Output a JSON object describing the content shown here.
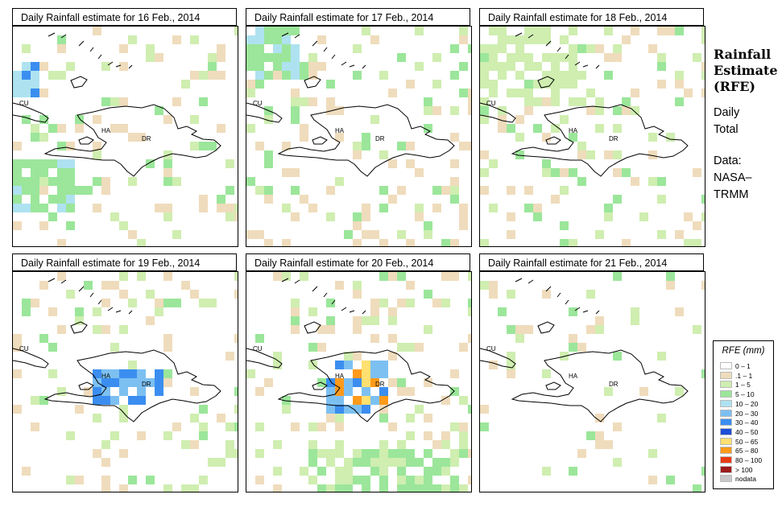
{
  "panels": [
    {
      "title": "Daily Rainfall estimate for  16 Feb., 2014"
    },
    {
      "title": "Daily Rainfall estimate for  17 Feb., 2014"
    },
    {
      "title": "Daily Rainfall estimate for  18 Feb., 2014"
    },
    {
      "title": "Daily Rainfall estimate for  19 Feb., 2014"
    },
    {
      "title": "Daily Rainfall estimate for  20 Feb., 2014"
    },
    {
      "title": "Daily Rainfall estimate for  21 Feb., 2014"
    }
  ],
  "map_labels": {
    "cuba": "CU",
    "haiti": "HA",
    "dr": "DR"
  },
  "side": {
    "title_lines": [
      "Rainfall",
      "Estimate",
      "(RFE)"
    ],
    "daily_lines": [
      "Daily",
      "Total"
    ],
    "data_lines": [
      "Data:",
      "NASA–",
      "TRMM"
    ]
  },
  "legend": {
    "title": "RFE (mm)",
    "items": [
      {
        "label": "0 – 1",
        "color": "#ffffff"
      },
      {
        "label": ".1 – 1",
        "color": "#efdcbc"
      },
      {
        "label": "1 – 5",
        "color": "#cfeeb0"
      },
      {
        "label": "5 – 10",
        "color": "#9be69a"
      },
      {
        "label": "10 – 20",
        "color": "#aee2f0"
      },
      {
        "label": "20 – 30",
        "color": "#7cc0f2"
      },
      {
        "label": "30 – 40",
        "color": "#3b8ef0"
      },
      {
        "label": "40 – 50",
        "color": "#1b4fd6"
      },
      {
        "label": "50 – 65",
        "color": "#ffe070"
      },
      {
        "label": "65 – 80",
        "color": "#ff9a1a"
      },
      {
        "label": "80 – 100",
        "color": "#e83a14"
      },
      {
        "label": "> 100",
        "color": "#9e1a1a"
      },
      {
        "label": "nodata",
        "color": "#c8c8c8"
      }
    ]
  }
}
